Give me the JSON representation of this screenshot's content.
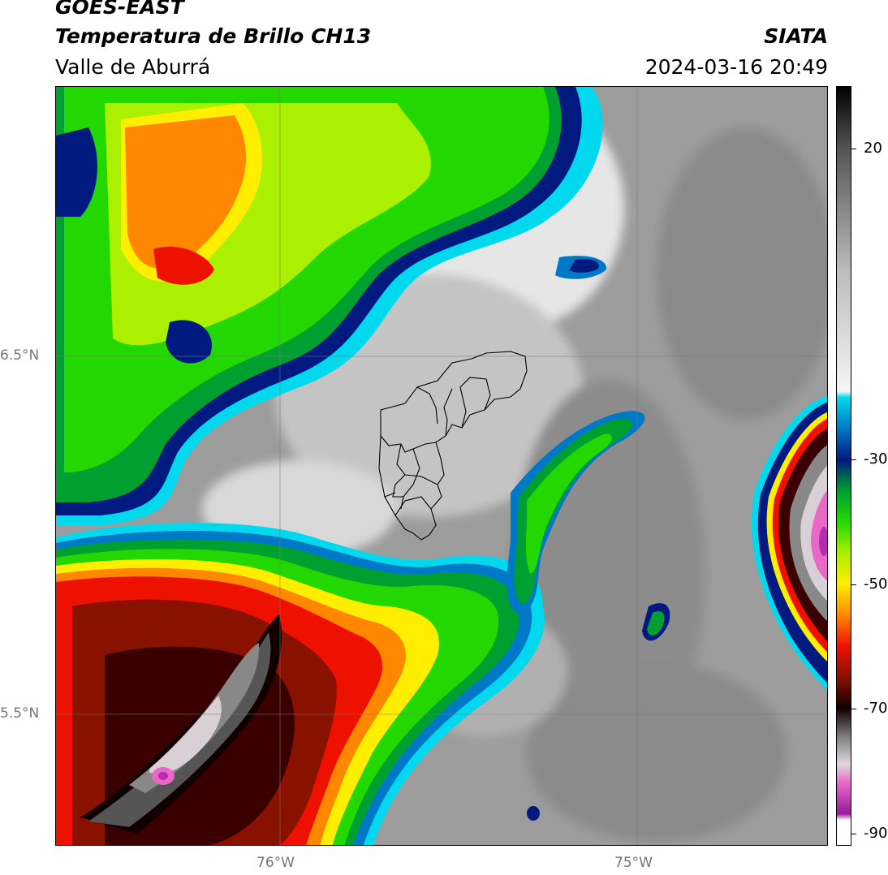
{
  "header": {
    "satellite": "GOES-EAST",
    "product": "Temperatura de Brillo CH13",
    "region": "Valle de Aburrá",
    "organization": "SIATA",
    "datetime": "2024-03-16 20:49"
  },
  "map": {
    "lat_ticks": [
      "6.5°N",
      "5.5°N"
    ],
    "lon_ticks": [
      "76°W",
      "75°W"
    ]
  },
  "colorbar": {
    "ticks": [
      "20",
      "-30",
      "-50",
      "-70",
      "-90"
    ],
    "stops": [
      {
        "value": 30,
        "color": "#000000"
      },
      {
        "value": 20,
        "color": "#555555"
      },
      {
        "value": 0,
        "color": "#bdbdbd"
      },
      {
        "value": -19,
        "color": "#f5f5f5"
      },
      {
        "value": -20,
        "color": "#00d8ee"
      },
      {
        "value": -25,
        "color": "#0078c8"
      },
      {
        "value": -30,
        "color": "#001a80"
      },
      {
        "value": -35,
        "color": "#00a030"
      },
      {
        "value": -40,
        "color": "#22d800"
      },
      {
        "value": -45,
        "color": "#aaf000"
      },
      {
        "value": -50,
        "color": "#ffee00"
      },
      {
        "value": -55,
        "color": "#ff8800"
      },
      {
        "value": -60,
        "color": "#ee1100"
      },
      {
        "value": -65,
        "color": "#881100"
      },
      {
        "value": -70,
        "color": "#100000"
      },
      {
        "value": -75,
        "color": "#888888"
      },
      {
        "value": -79,
        "color": "#e0d8dc"
      },
      {
        "value": -82,
        "color": "#e868c8"
      },
      {
        "value": -87,
        "color": "#9a1a9a"
      },
      {
        "value": -88,
        "color": "#ffffff"
      },
      {
        "value": -92,
        "color": "#ffffff"
      }
    ]
  }
}
